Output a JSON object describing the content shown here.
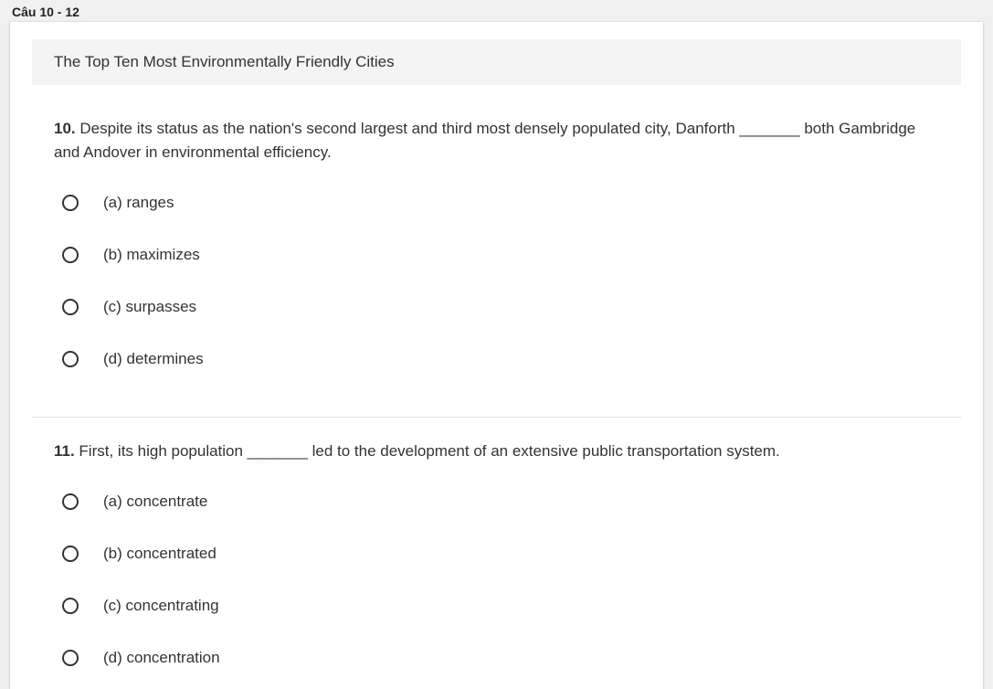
{
  "section_label": "Câu 10 - 12",
  "passage_title": "The Top Ten Most Environmentally Friendly Cities",
  "questions": [
    {
      "number": "10.",
      "text": " Despite its status as the nation's second largest and third most densely populated city, Danforth _______ both Gambridge and Andover in environmental efficiency.",
      "options": [
        {
          "label": "(a) ranges",
          "selected": false
        },
        {
          "label": "(b) maximizes",
          "selected": false
        },
        {
          "label": "(c) surpasses",
          "selected": false
        },
        {
          "label": "(d) determines",
          "selected": false
        }
      ]
    },
    {
      "number": "11.",
      "text": " First, its high population _______ led to the development of an extensive public transportation system.",
      "options": [
        {
          "label": "(a) concentrate",
          "selected": false
        },
        {
          "label": "(b) concentrated",
          "selected": false
        },
        {
          "label": "(c) concentrating",
          "selected": false
        },
        {
          "label": "(d) concentration",
          "selected": false
        }
      ]
    }
  ]
}
